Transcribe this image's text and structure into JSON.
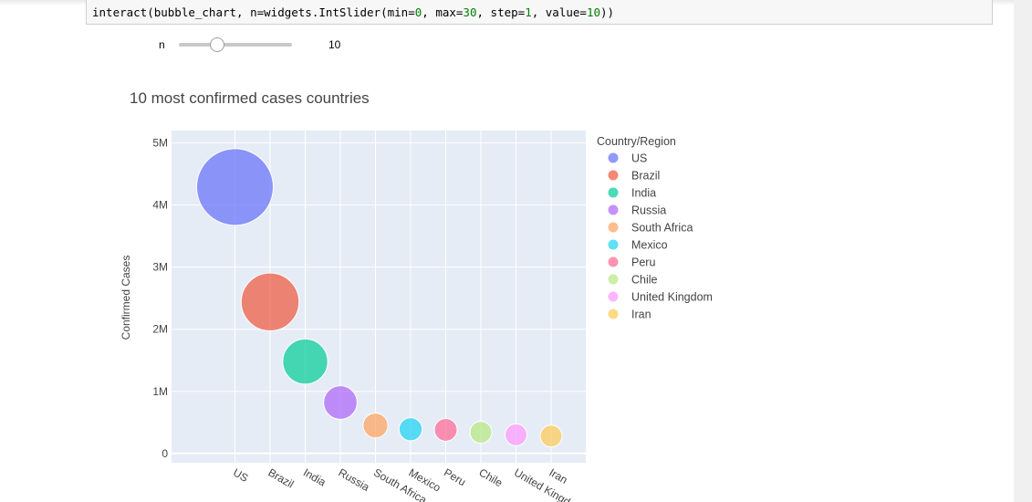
{
  "code_cell": {
    "prefix": "interact(bubble_chart, n=widgets.IntSlider(",
    "args": [
      {
        "name": "min",
        "value": "0"
      },
      {
        "name": "max",
        "value": "30"
      },
      {
        "name": "step",
        "value": "1"
      },
      {
        "name": "value",
        "value": "10"
      }
    ],
    "suffix": "))"
  },
  "slider": {
    "label": "n",
    "value": 10,
    "min": 0,
    "max": 30,
    "display_value": "10"
  },
  "chart_data": {
    "type": "scatter",
    "title": "10 most confirmed cases countries",
    "xlabel": "",
    "ylabel": "Confirmed Cases",
    "ylim": [
      -150000,
      5200000
    ],
    "y_ticks": [
      {
        "value": 0,
        "label": "0"
      },
      {
        "value": 1000000,
        "label": "1M"
      },
      {
        "value": 2000000,
        "label": "2M"
      },
      {
        "value": 3000000,
        "label": "3M"
      },
      {
        "value": 4000000,
        "label": "4M"
      },
      {
        "value": 5000000,
        "label": "5M"
      }
    ],
    "categories": [
      "US",
      "Brazil",
      "India",
      "Russia",
      "South Africa",
      "Mexico",
      "Peru",
      "Chile",
      "United Kingdom",
      "Iran"
    ],
    "legend_title": "Country/Region",
    "legend_position": "right",
    "grid": true,
    "series": [
      {
        "name": "US",
        "y": 4290000,
        "color": "#636efa"
      },
      {
        "name": "Brazil",
        "y": 2440000,
        "color": "#EF553B"
      },
      {
        "name": "India",
        "y": 1480000,
        "color": "#00cc96"
      },
      {
        "name": "Russia",
        "y": 820000,
        "color": "#ab63fa"
      },
      {
        "name": "South Africa",
        "y": 450000,
        "color": "#FFA15A"
      },
      {
        "name": "Mexico",
        "y": 390000,
        "color": "#19d3f3"
      },
      {
        "name": "Peru",
        "y": 380000,
        "color": "#FF6692"
      },
      {
        "name": "Chile",
        "y": 340000,
        "color": "#B6E880"
      },
      {
        "name": "United Kingdom",
        "y": 300000,
        "color": "#FF97FF"
      },
      {
        "name": "Iran",
        "y": 280000,
        "color": "#FECB52"
      }
    ]
  }
}
